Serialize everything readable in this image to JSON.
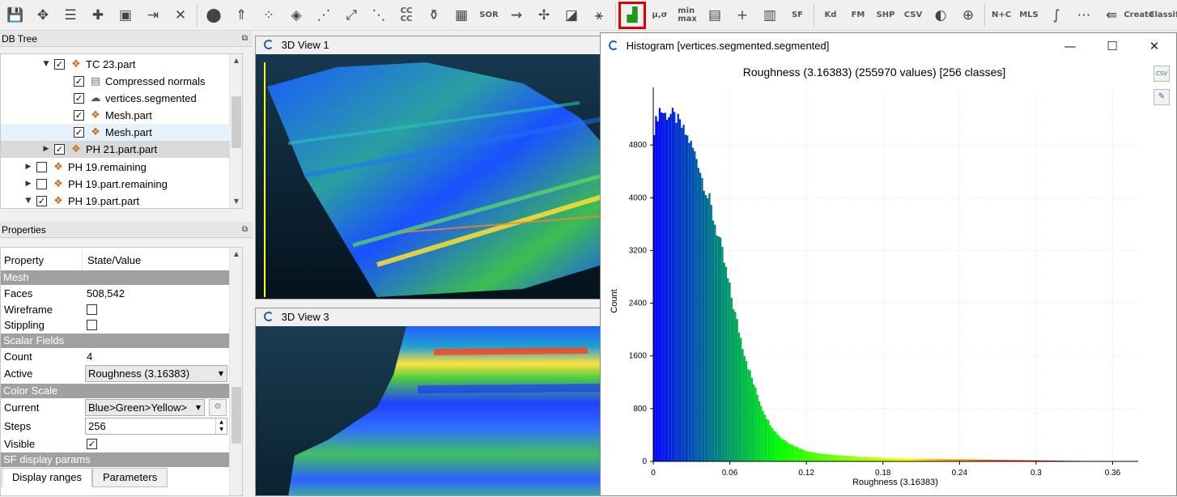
{
  "toolbar": {
    "icons": [
      {
        "name": "save-icon",
        "glyph": "💾"
      },
      {
        "name": "graphical-transform-icon",
        "glyph": "✥"
      },
      {
        "name": "list-icon",
        "glyph": "☰"
      },
      {
        "name": "merge-icon",
        "glyph": "✚"
      },
      {
        "name": "color-icon",
        "glyph": "▣"
      },
      {
        "name": "export-icon",
        "glyph": "⇥"
      },
      {
        "name": "delete-icon",
        "glyph": "✕"
      },
      {
        "name": "sample-points-icon",
        "glyph": "⬤"
      },
      {
        "name": "normals-icon",
        "glyph": "⇑"
      },
      {
        "name": "subsample-icon",
        "glyph": "⁘"
      },
      {
        "name": "mesh-icon",
        "glyph": "◈"
      },
      {
        "name": "segment-icon",
        "glyph": "⋰"
      },
      {
        "name": "scale-icon",
        "glyph": "⤢"
      },
      {
        "name": "cross-section-icon",
        "glyph": "⋱"
      },
      {
        "name": "connected-components-icon",
        "text": "CC\nCC"
      },
      {
        "name": "filter-icon",
        "glyph": "⚱"
      },
      {
        "name": "noise-icon",
        "glyph": "▦"
      },
      {
        "name": "sor-icon",
        "text": "SOR"
      },
      {
        "name": "compute-distance-icon",
        "glyph": "⇝"
      },
      {
        "name": "translate-icon",
        "glyph": "✢"
      },
      {
        "name": "plane-icon",
        "glyph": "◪"
      },
      {
        "name": "pick-icon",
        "glyph": "⚹"
      },
      {
        "name": "histogram-icon",
        "glyph": "▟"
      },
      {
        "name": "sf-gradient-icon",
        "text": "μ,σ"
      },
      {
        "name": "minmax-icon",
        "text": "min\nmax"
      },
      {
        "name": "calculator-icon",
        "glyph": "▤"
      },
      {
        "name": "add-icon",
        "glyph": "+"
      },
      {
        "name": "sf-arithmetic-icon",
        "glyph": "▥"
      },
      {
        "name": "scalar-field-icon",
        "text": "SF"
      },
      {
        "name": "kd-tree-icon",
        "text": "Kd"
      },
      {
        "name": "fast-marching-icon",
        "text": "FM"
      },
      {
        "name": "shp-icon",
        "text": "SHP"
      },
      {
        "name": "csv-icon",
        "text": "CSV"
      },
      {
        "name": "sphere-icon",
        "glyph": "◐"
      },
      {
        "name": "globe-icon",
        "glyph": "⊕"
      },
      {
        "name": "n-plus-c-icon",
        "text": "N+C"
      },
      {
        "name": "mls-icon",
        "text": "MLS"
      },
      {
        "name": "ransac-icon",
        "glyph": "∫"
      },
      {
        "name": "facets-icon",
        "glyph": "⋯"
      },
      {
        "name": "qcompass-icon",
        "glyph": "⇚"
      },
      {
        "name": "canupo-create-icon",
        "text": "Create"
      },
      {
        "name": "canupo-classify-icon",
        "text": "Classify"
      }
    ],
    "accent_selected": "#e00000"
  },
  "db_tree": {
    "title": "DB Tree",
    "items": [
      {
        "label": "TC 23.part",
        "checked": true,
        "expanded": true,
        "depth": 3,
        "icon": "mesh-icon"
      },
      {
        "label": "Compressed normals",
        "checked": true,
        "depth": 4,
        "icon": "normals-icon"
      },
      {
        "label": "vertices.segmented",
        "checked": true,
        "depth": 4,
        "icon": "cloud-icon"
      },
      {
        "label": "Mesh.part",
        "checked": true,
        "depth": 4,
        "icon": "mesh-icon"
      },
      {
        "label": "Mesh.part",
        "checked": true,
        "depth": 4,
        "icon": "mesh-icon",
        "highlighted": true
      },
      {
        "label": "PH 21.part.part",
        "checked": true,
        "depth": 3,
        "icon": "mesh-icon",
        "collapsed": true,
        "selected": true
      },
      {
        "label": "PH 19.remaining",
        "checked": false,
        "depth": 2,
        "icon": "mesh-icon",
        "collapsed": true
      },
      {
        "label": "PH 19.part.remaining",
        "checked": false,
        "depth": 2,
        "icon": "mesh-icon",
        "collapsed": true
      },
      {
        "label": "PH 19.part.part",
        "checked": true,
        "depth": 2,
        "icon": "mesh-icon",
        "expanded": true
      }
    ]
  },
  "properties": {
    "title": "Properties",
    "col_property": "Property",
    "col_value": "State/Value",
    "sec_mesh": "Mesh",
    "faces_label": "Faces",
    "faces_value": "508,542",
    "wireframe_label": "Wireframe",
    "stippling_label": "Stippling",
    "sec_sf": "Scalar Fields",
    "count_label": "Count",
    "count_value": "4",
    "active_label": "Active",
    "active_value": "Roughness (3.16383)",
    "sec_colorscale": "Color Scale",
    "current_label": "Current",
    "current_value": "Blue>Green>Yellow>",
    "steps_label": "Steps",
    "steps_value": "256",
    "visible_label": "Visible",
    "sec_sfdisplay": "SF display params",
    "tab_display": "Display ranges",
    "tab_params": "Parameters"
  },
  "views": {
    "view1_title": "3D View 1",
    "view3_title": "3D View 3"
  },
  "histogram_window": {
    "title": "Histogram [vertices.segmented.segmented]",
    "minimize": "—",
    "maximize": "☐",
    "close": "✕",
    "export_csv_btn": "CSV",
    "export_img_btn": "✎"
  },
  "chart_data": {
    "type": "bar",
    "title": "Roughness (3.16383) (255970 values)  [256 classes]",
    "xlabel": "Roughness (3.16383)",
    "ylabel": "Count",
    "xlim": [
      0,
      0.38
    ],
    "ylim": [
      0,
      5600
    ],
    "x_ticks": [
      "0",
      "0.06",
      "0.12",
      "0.18",
      "0.24",
      "0.3",
      "0.36"
    ],
    "y_ticks": [
      "0",
      "800",
      "1600",
      "2400",
      "3200",
      "4000",
      "4800"
    ],
    "grid": true,
    "color_scale": [
      "#0000ff",
      "#00ff00",
      "#ffff00",
      "#ff0000"
    ],
    "classes": 256,
    "bin_width": 0.001445,
    "envelope_x": [
      0.0,
      0.005,
      0.01,
      0.015,
      0.02,
      0.025,
      0.03,
      0.035,
      0.04,
      0.045,
      0.05,
      0.055,
      0.06,
      0.065,
      0.07,
      0.075,
      0.08,
      0.085,
      0.09,
      0.095,
      0.1,
      0.11,
      0.12,
      0.13,
      0.14,
      0.15,
      0.16,
      0.18,
      0.2,
      0.22,
      0.24,
      0.26,
      0.28,
      0.3,
      0.32,
      0.34,
      0.36,
      0.37
    ],
    "envelope_y": [
      5000,
      5350,
      5250,
      5270,
      5160,
      4980,
      4800,
      4550,
      4170,
      3860,
      3500,
      3080,
      2620,
      2170,
      1760,
      1400,
      1100,
      830,
      620,
      470,
      360,
      240,
      160,
      118,
      100,
      86,
      72,
      55,
      44,
      38,
      33,
      26,
      20,
      15,
      10,
      6,
      3,
      1
    ]
  }
}
